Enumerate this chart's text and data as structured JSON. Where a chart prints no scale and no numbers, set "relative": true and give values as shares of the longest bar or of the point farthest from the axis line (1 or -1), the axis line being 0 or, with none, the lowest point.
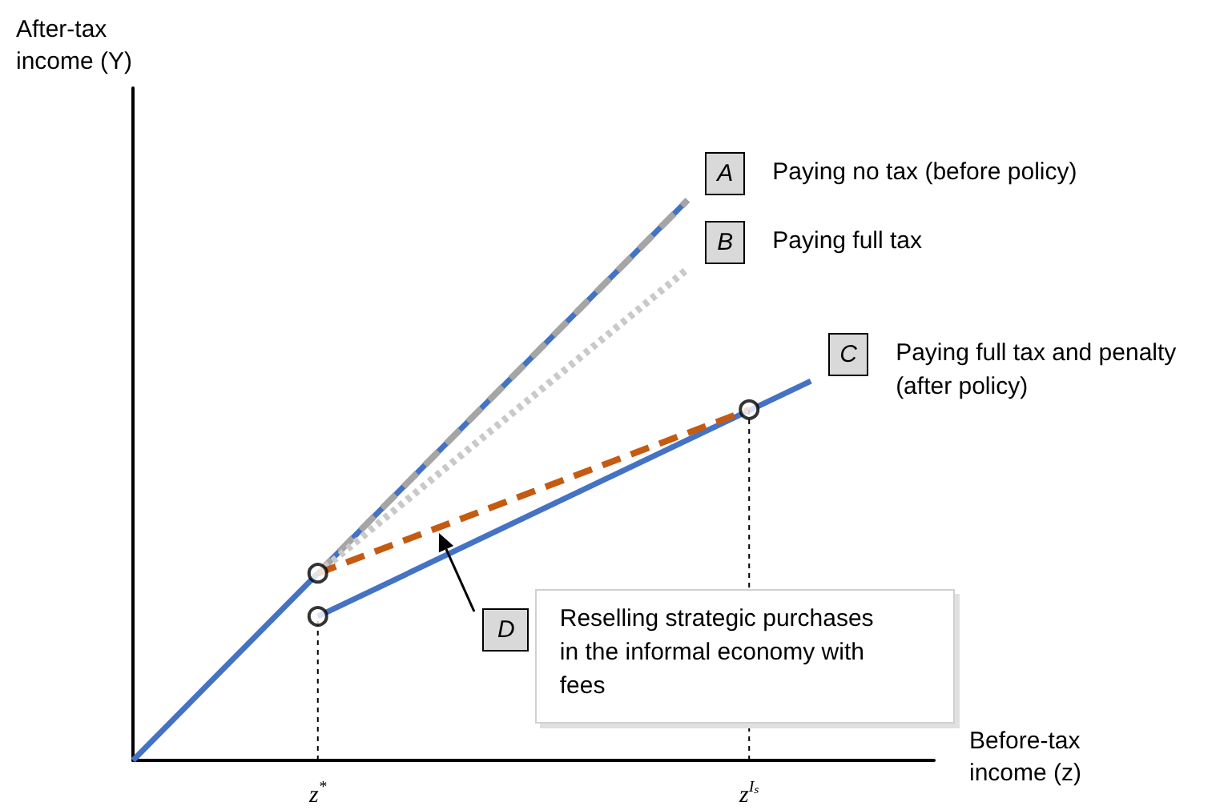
{
  "chart_data": {
    "type": "line",
    "relative": true,
    "xlabel": "Before-tax\nincome (z)",
    "categories": [
      null,
      null,
      null,
      "z$^{*}$",
      null,
      null,
      null,
      null,
      null,
      null,
      "z$^{Iₛ}$",
      null,
      null,
      null
    ],
    "grid": false,
    "annotations": [
      "After-tax\nincome (Y)",
      "A",
      "Paying no tax (before policy)",
      "B",
      "Paying full tax",
      "C",
      "Paying full tax and penalty (after policy)",
      "D",
      "Reselling strategic purchases in the informal economy with fees"
    ],
    "series": [
      {
        "color": "#4472c4",
        "line_style": "solid",
        "values": [
          0,
          null,
          null,
          0.334,
          null,
          null,
          null,
          null,
          null,
          1,
          null,
          null,
          null,
          null
        ]
      },
      {
        "color": "#a5a5a5",
        "line_style": "dashed",
        "values": [
          null,
          null,
          null,
          0.334,
          null,
          null,
          null,
          null,
          null,
          1,
          null,
          null,
          null,
          null
        ]
      },
      {
        "color": "#c9c9c9",
        "line_style": "dotted",
        "values": [
          null,
          null,
          null,
          0.334,
          null,
          null,
          null,
          null,
          null,
          0.877,
          null,
          null,
          null,
          null
        ]
      },
      {
        "color": "#4472c4",
        "line_style": "solid",
        "values": [
          null,
          null,
          null,
          0.257,
          null,
          null,
          null,
          null,
          null,
          null,
          null,
          0.677,
          null,
          null
        ]
      },
      {
        "color": "#c55a11",
        "line_style": "dashed",
        "values": [
          null,
          null,
          null,
          0.334,
          null,
          null,
          null,
          null,
          null,
          null,
          0.626,
          null,
          null,
          null
        ]
      },
      {
        "type": "line",
        "color": "#000000",
        "line_style": "dotted",
        "x": [
          "z$^{*}$",
          "z$^{*}$"
        ],
        "values": [
          0,
          0.257
        ]
      },
      {
        "type": "line",
        "color": "#000000",
        "line_style": "dotted",
        "x": [
          "z$^{Iₛ}$",
          "z$^{Iₛ}$"
        ],
        "values": [
          0,
          0.626
        ]
      },
      {
        "type": "scatter",
        "color": "#000000",
        "marker": "circle",
        "x": [
          "z$^{*}$",
          "z$^{*}$",
          "z$^{Iₛ}$"
        ],
        "values": [
          0.334,
          0.257,
          0.626
        ]
      }
    ]
  }
}
